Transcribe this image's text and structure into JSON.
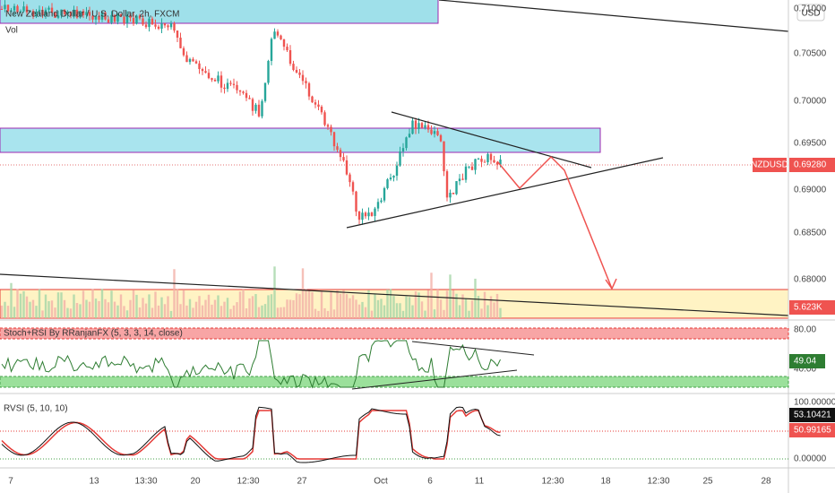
{
  "header": {
    "title": "New Zealand Dollar / U.S. Dollar, 2h, FXCM",
    "volume": "Vol",
    "currency": "USD"
  },
  "price_axis": {
    "labels": [
      "0.71000",
      "0.70500",
      "0.70000",
      "0.69500",
      "0.69000",
      "0.68500",
      "0.68000"
    ]
  },
  "tags": {
    "symbol": "NZDUSD",
    "price": "0.69280",
    "volume": "5.623K"
  },
  "stoch": {
    "title": "Stoch+RSI By RRanjanFX (5, 3, 3, 14, close)",
    "upper": "80.00",
    "value": "49.04",
    "lower": "40.00"
  },
  "rvsi": {
    "title": "RVSI (5, 10, 10)",
    "top": "100.00000",
    "value1": "53.10421",
    "value2": "50.99165",
    "bottom": "0.00000"
  },
  "time_axis": {
    "labels": [
      "7",
      "13",
      "13:30",
      "20",
      "12:30",
      "27",
      "Oct",
      "6",
      "11",
      "12:30",
      "18",
      "12:30",
      "25",
      "28"
    ]
  }
}
